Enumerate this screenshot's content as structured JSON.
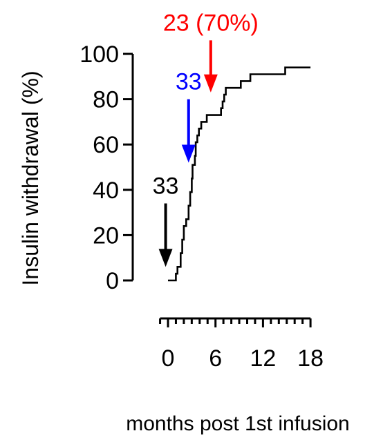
{
  "chart_data": {
    "type": "line",
    "title": "",
    "xlabel": "months post 1st infusion",
    "ylabel": "Insulin withdrawal (%)",
    "xlim": [
      -1,
      18
    ],
    "ylim": [
      0,
      100
    ],
    "x_ticks": [
      0,
      6,
      12,
      18
    ],
    "y_ticks": [
      0,
      20,
      40,
      60,
      80,
      100
    ],
    "grid": false,
    "series": [
      {
        "step": true,
        "color": "#000000",
        "points": [
          [
            0,
            0
          ],
          [
            1,
            0
          ],
          [
            1,
            3
          ],
          [
            1.2,
            3
          ],
          [
            1.2,
            6
          ],
          [
            1.6,
            6
          ],
          [
            1.6,
            12
          ],
          [
            1.8,
            12
          ],
          [
            1.8,
            18
          ],
          [
            2.0,
            18
          ],
          [
            2.0,
            24
          ],
          [
            2.3,
            24
          ],
          [
            2.3,
            27
          ],
          [
            2.6,
            27
          ],
          [
            2.6,
            33
          ],
          [
            2.8,
            33
          ],
          [
            2.8,
            39
          ],
          [
            3.0,
            39
          ],
          [
            3.0,
            45
          ],
          [
            3.1,
            45
          ],
          [
            3.1,
            51
          ],
          [
            3.4,
            51
          ],
          [
            3.4,
            55
          ],
          [
            3.5,
            55
          ],
          [
            3.5,
            61
          ],
          [
            3.7,
            61
          ],
          [
            3.7,
            64
          ],
          [
            3.9,
            64
          ],
          [
            3.9,
            67
          ],
          [
            4.2,
            67
          ],
          [
            4.2,
            70
          ],
          [
            4.9,
            70
          ],
          [
            4.9,
            73
          ],
          [
            6.7,
            73
          ],
          [
            6.7,
            76
          ],
          [
            6.9,
            76
          ],
          [
            6.9,
            79
          ],
          [
            7.1,
            79
          ],
          [
            7.1,
            82
          ],
          [
            7.3,
            82
          ],
          [
            7.3,
            85
          ],
          [
            9.2,
            85
          ],
          [
            9.2,
            88
          ],
          [
            10.4,
            88
          ],
          [
            10.4,
            91
          ],
          [
            14.8,
            91
          ],
          [
            14.8,
            94
          ],
          [
            18,
            94
          ]
        ]
      }
    ],
    "annotations": [
      {
        "text": "33",
        "color": "#000000",
        "x": -0.3,
        "y_top": 34,
        "y_bottom": 6
      },
      {
        "text": "33",
        "color": "#0000ff",
        "x": 2.6,
        "y_top": 80,
        "y_bottom": 52
      },
      {
        "text": "23 (70%)",
        "color": "#ff0000",
        "x": 5.4,
        "y_top": 106,
        "y_bottom": 83
      }
    ]
  }
}
